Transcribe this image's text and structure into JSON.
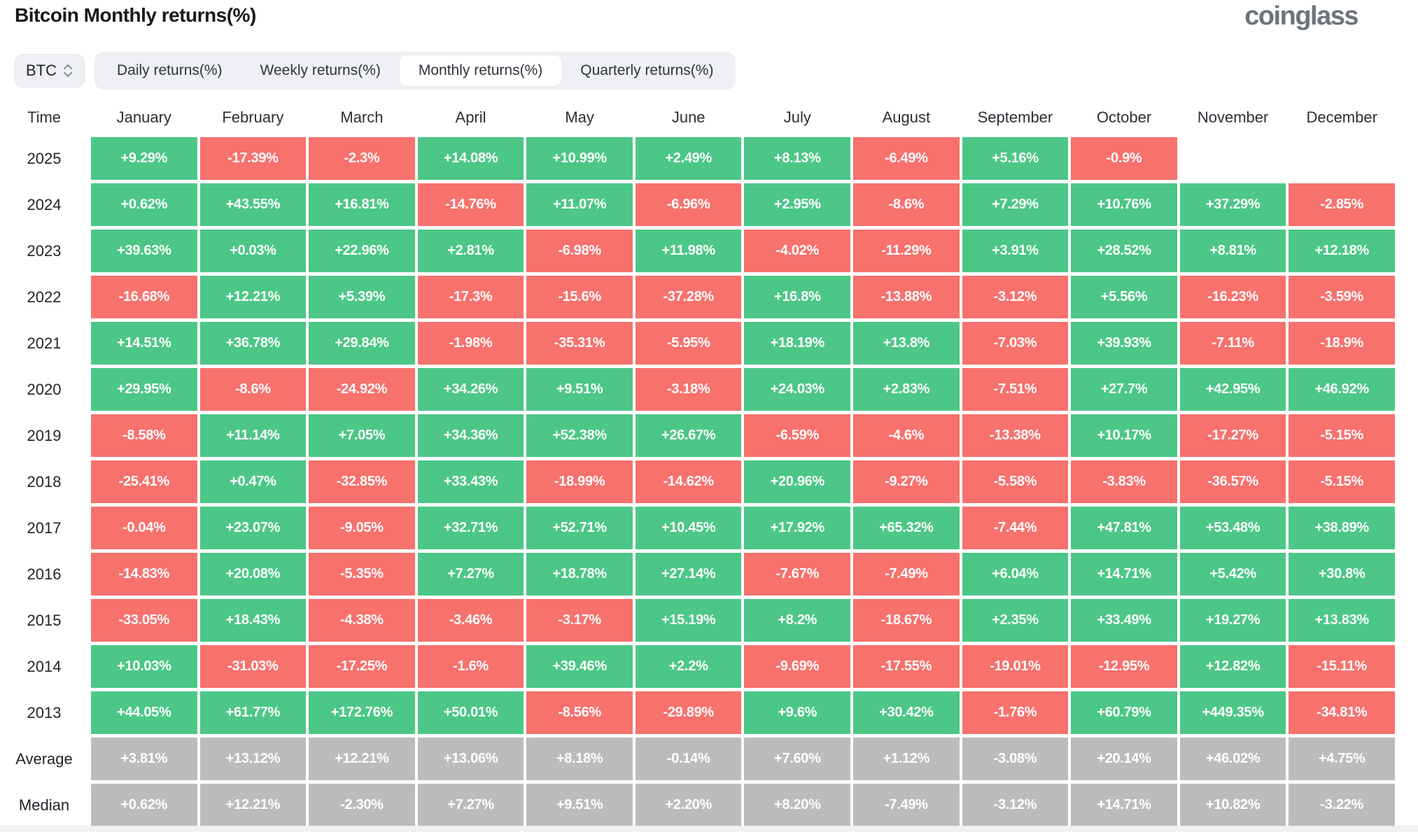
{
  "header": {
    "title": "Bitcoin Monthly returns(%)",
    "logo": "coinglass"
  },
  "controls": {
    "symbol_select": {
      "value": "BTC",
      "icon": "updown-chevron-icon"
    },
    "tabs": [
      {
        "label": "Daily returns(%)",
        "active": false
      },
      {
        "label": "Weekly returns(%)",
        "active": false
      },
      {
        "label": "Monthly returns(%)",
        "active": true
      },
      {
        "label": "Quarterly returns(%)",
        "active": false
      }
    ]
  },
  "colors": {
    "positive": "#4CC787",
    "negative": "#F7716D",
    "neutral": "#BCBCBC",
    "header_text": "#2b3036",
    "title_text": "#17191d",
    "logo_text": "#6d737c",
    "tab_bg": "#eef0f3"
  },
  "chart_data": {
    "type": "table",
    "title": "Bitcoin Monthly returns(%)",
    "columns": [
      "Time",
      "January",
      "February",
      "March",
      "April",
      "May",
      "June",
      "July",
      "August",
      "September",
      "October",
      "November",
      "December"
    ],
    "rows": [
      {
        "label": "2025",
        "neutral": false,
        "values": [
          "+9.29%",
          "-17.39%",
          "-2.3%",
          "+14.08%",
          "+10.99%",
          "+2.49%",
          "+8.13%",
          "-6.49%",
          "+5.16%",
          "-0.9%",
          null,
          null
        ]
      },
      {
        "label": "2024",
        "neutral": false,
        "values": [
          "+0.62%",
          "+43.55%",
          "+16.81%",
          "-14.76%",
          "+11.07%",
          "-6.96%",
          "+2.95%",
          "-8.6%",
          "+7.29%",
          "+10.76%",
          "+37.29%",
          "-2.85%"
        ]
      },
      {
        "label": "2023",
        "neutral": false,
        "values": [
          "+39.63%",
          "+0.03%",
          "+22.96%",
          "+2.81%",
          "-6.98%",
          "+11.98%",
          "-4.02%",
          "-11.29%",
          "+3.91%",
          "+28.52%",
          "+8.81%",
          "+12.18%"
        ]
      },
      {
        "label": "2022",
        "neutral": false,
        "values": [
          "-16.68%",
          "+12.21%",
          "+5.39%",
          "-17.3%",
          "-15.6%",
          "-37.28%",
          "+16.8%",
          "-13.88%",
          "-3.12%",
          "+5.56%",
          "-16.23%",
          "-3.59%"
        ]
      },
      {
        "label": "2021",
        "neutral": false,
        "values": [
          "+14.51%",
          "+36.78%",
          "+29.84%",
          "-1.98%",
          "-35.31%",
          "-5.95%",
          "+18.19%",
          "+13.8%",
          "-7.03%",
          "+39.93%",
          "-7.11%",
          "-18.9%"
        ]
      },
      {
        "label": "2020",
        "neutral": false,
        "values": [
          "+29.95%",
          "-8.6%",
          "-24.92%",
          "+34.26%",
          "+9.51%",
          "-3.18%",
          "+24.03%",
          "+2.83%",
          "-7.51%",
          "+27.7%",
          "+42.95%",
          "+46.92%"
        ]
      },
      {
        "label": "2019",
        "neutral": false,
        "values": [
          "-8.58%",
          "+11.14%",
          "+7.05%",
          "+34.36%",
          "+52.38%",
          "+26.67%",
          "-6.59%",
          "-4.6%",
          "-13.38%",
          "+10.17%",
          "-17.27%",
          "-5.15%"
        ]
      },
      {
        "label": "2018",
        "neutral": false,
        "values": [
          "-25.41%",
          "+0.47%",
          "-32.85%",
          "+33.43%",
          "-18.99%",
          "-14.62%",
          "+20.96%",
          "-9.27%",
          "-5.58%",
          "-3.83%",
          "-36.57%",
          "-5.15%"
        ]
      },
      {
        "label": "2017",
        "neutral": false,
        "values": [
          "-0.04%",
          "+23.07%",
          "-9.05%",
          "+32.71%",
          "+52.71%",
          "+10.45%",
          "+17.92%",
          "+65.32%",
          "-7.44%",
          "+47.81%",
          "+53.48%",
          "+38.89%"
        ]
      },
      {
        "label": "2016",
        "neutral": false,
        "values": [
          "-14.83%",
          "+20.08%",
          "-5.35%",
          "+7.27%",
          "+18.78%",
          "+27.14%",
          "-7.67%",
          "-7.49%",
          "+6.04%",
          "+14.71%",
          "+5.42%",
          "+30.8%"
        ]
      },
      {
        "label": "2015",
        "neutral": false,
        "values": [
          "-33.05%",
          "+18.43%",
          "-4.38%",
          "-3.46%",
          "-3.17%",
          "+15.19%",
          "+8.2%",
          "-18.67%",
          "+2.35%",
          "+33.49%",
          "+19.27%",
          "+13.83%"
        ]
      },
      {
        "label": "2014",
        "neutral": false,
        "values": [
          "+10.03%",
          "-31.03%",
          "-17.25%",
          "-1.6%",
          "+39.46%",
          "+2.2%",
          "-9.69%",
          "-17.55%",
          "-19.01%",
          "-12.95%",
          "+12.82%",
          "-15.11%"
        ]
      },
      {
        "label": "2013",
        "neutral": false,
        "values": [
          "+44.05%",
          "+61.77%",
          "+172.76%",
          "+50.01%",
          "-8.56%",
          "-29.89%",
          "+9.6%",
          "+30.42%",
          "-1.76%",
          "+60.79%",
          "+449.35%",
          "-34.81%"
        ]
      },
      {
        "label": "Average",
        "neutral": true,
        "values": [
          "+3.81%",
          "+13.12%",
          "+12.21%",
          "+13.06%",
          "+8.18%",
          "-0.14%",
          "+7.60%",
          "+1.12%",
          "-3.08%",
          "+20.14%",
          "+46.02%",
          "+4.75%"
        ]
      },
      {
        "label": "Median",
        "neutral": true,
        "values": [
          "+0.62%",
          "+12.21%",
          "-2.30%",
          "+7.27%",
          "+9.51%",
          "+2.20%",
          "+8.20%",
          "-7.49%",
          "-3.12%",
          "+14.71%",
          "+10.82%",
          "-3.22%"
        ]
      }
    ]
  }
}
